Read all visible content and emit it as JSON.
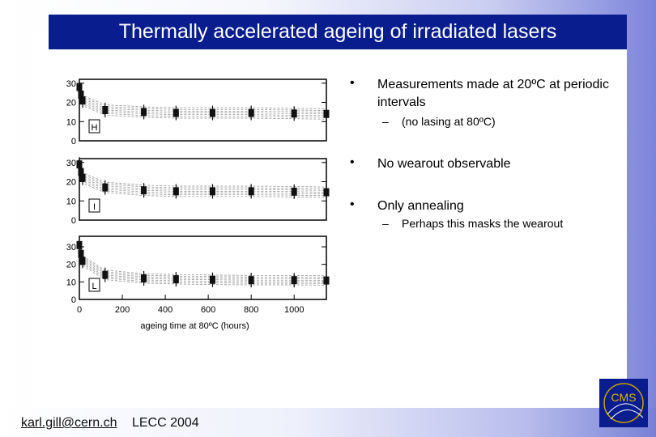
{
  "slide": {
    "title": "Thermally accelerated ageing of irradiated lasers",
    "bullets": [
      {
        "marker": "•",
        "text": "Measurements made at 20ºC at periodic intervals"
      },
      {
        "marker": "•",
        "text": "No wearout observable"
      },
      {
        "marker": "•",
        "text": "Only annealing"
      }
    ],
    "sub_bullets": [
      {
        "marker": "–",
        "text": "(no lasing at 80ºC)"
      },
      {
        "marker": "–",
        "text": "Perhaps this masks the wearout"
      }
    ],
    "footer": {
      "email": "karl.gill@cern.ch",
      "conference": "LECC 2004"
    },
    "logo_text": "CMS"
  },
  "chart_data": {
    "type": "scatter",
    "xlabel": "ageing time at 80ºC (hours)",
    "x_ticks": [
      "0",
      "200",
      "400",
      "600",
      "800",
      "1000"
    ],
    "xlim": [
      0,
      1150
    ],
    "panels": [
      {
        "label": "H",
        "y_ticks": [
          "0",
          "10",
          "20",
          "30"
        ],
        "ylim": [
          0,
          32
        ],
        "x": [
          0,
          0,
          0,
          120,
          300,
          450,
          620,
          800,
          1000,
          1150
        ],
        "y": [
          28,
          24,
          21,
          16,
          15,
          14.5,
          14.5,
          14.5,
          14.2,
          14
        ]
      },
      {
        "label": "I",
        "y_ticks": [
          "0",
          "10",
          "20",
          "30"
        ],
        "ylim": [
          0,
          32
        ],
        "x": [
          0,
          0,
          0,
          120,
          300,
          450,
          620,
          800,
          1000,
          1150
        ],
        "y": [
          29,
          25,
          22,
          17,
          15.5,
          15,
          15,
          15,
          14.8,
          14.5
        ]
      },
      {
        "label": "L",
        "y_ticks": [
          "0",
          "10",
          "20",
          "30"
        ],
        "ylim": [
          0,
          36
        ],
        "x": [
          0,
          0,
          0,
          120,
          300,
          450,
          620,
          800,
          1000,
          1150
        ],
        "y": [
          31,
          26,
          22,
          14,
          12,
          11.5,
          11.2,
          11,
          11,
          10.8
        ]
      }
    ],
    "grid": false,
    "legend": "none"
  }
}
